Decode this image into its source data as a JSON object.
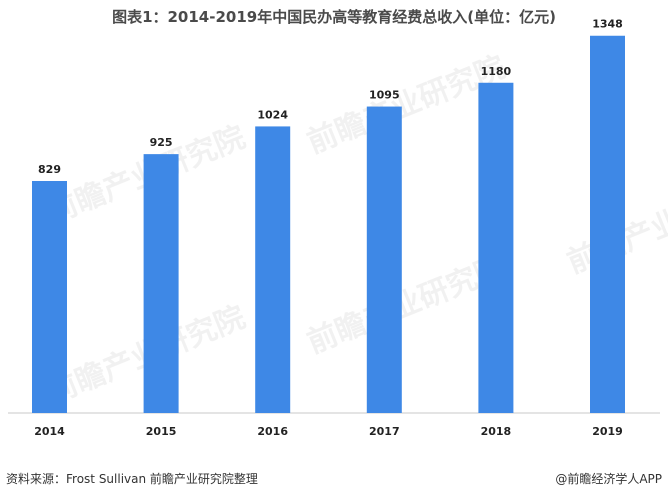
{
  "chart_data": {
    "type": "bar",
    "title": "图表1：2014-2019年中国民办高等教育经费总收入(单位：亿元)",
    "categories": [
      "2014",
      "2015",
      "2016",
      "2017",
      "2018",
      "2019"
    ],
    "values": [
      829,
      925,
      1024,
      1095,
      1180,
      1348
    ],
    "xlabel": "",
    "ylabel": "",
    "ylim": [
      0,
      1440
    ],
    "grid": false,
    "legend": "none",
    "bar_color": "#3e88e6"
  },
  "footer": {
    "source": "资料来源：Frost Sullivan  前瞻产业研究院整理",
    "brand": "@前瞻经济学人APP"
  },
  "watermark_text": "前瞻产业研究院"
}
